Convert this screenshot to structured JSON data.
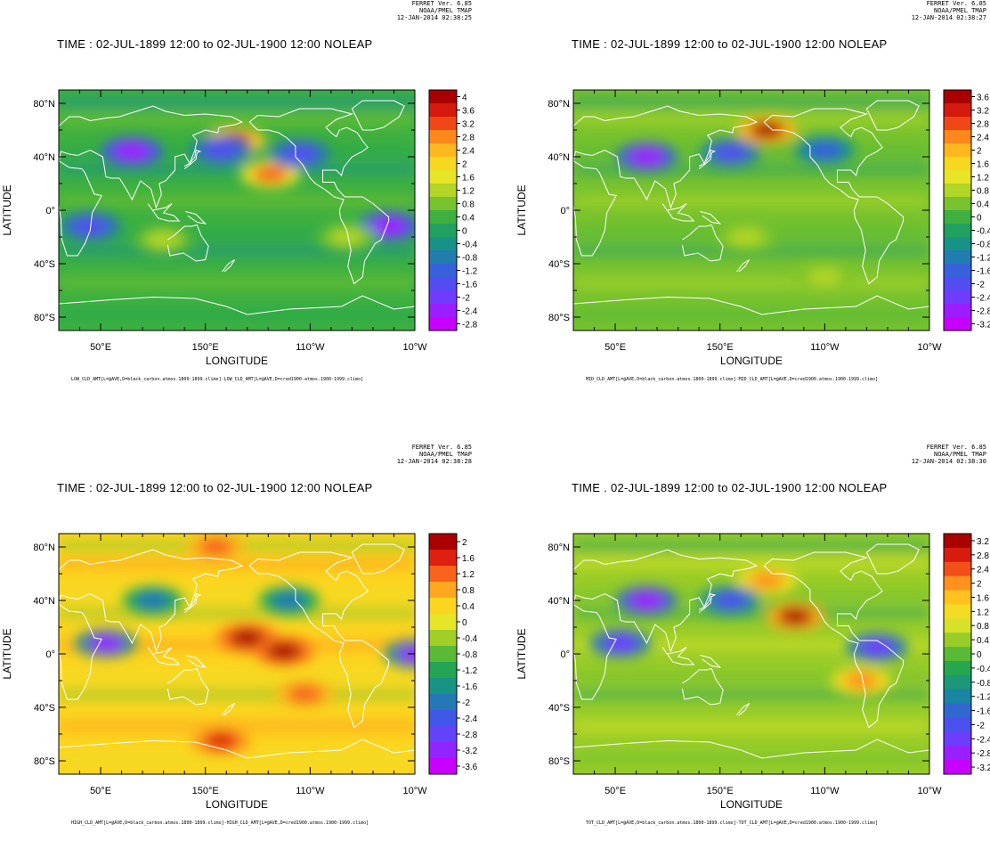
{
  "chart_data": [
    {
      "type": "heatmap",
      "header": [
        "FERRET Ver. 6.85",
        "NOAA/PMEL TMAP",
        "12-JAN-2014 02:38:25"
      ],
      "title": "TIME : 02-JUL-1899 12:00 to 02-JUL-1900 12:00 NOLEAP",
      "xlabel": "LONGITUDE",
      "ylabel": "LATITUDE",
      "x_ticks": [
        "50°E",
        "150°E",
        "110°W",
        "10°W"
      ],
      "y_ticks": [
        "80°N",
        "40°N",
        "0°",
        "40°S",
        "80°S"
      ],
      "colorbar_labels": [
        "4",
        "3.6",
        "3.2",
        "2.8",
        "2.4",
        "2",
        "1.6",
        "1.2",
        "0.8",
        "0.4",
        "0",
        "-0.4",
        "-0.8",
        "-1.2",
        "-1.6",
        "-2",
        "-2.4",
        "-2.8"
      ],
      "footer": "LOW_CLD_AMT[L=@AVE,D=black_carbon.atmos.1800-1899.climo]-LOW_CLD_AMT[L=@AVE,D=cred1900.atmos.1900-1999.climo]",
      "hotspots": [
        {
          "lon": 178,
          "lat": 52,
          "value": 4.0
        },
        {
          "lon": 212,
          "lat": 27,
          "value": 3.0
        },
        {
          "lon": 80,
          "lat": 44,
          "value": -2.4
        },
        {
          "lon": 165,
          "lat": 45,
          "value": -1.6
        },
        {
          "lon": 240,
          "lat": 42,
          "value": -1.6
        },
        {
          "lon": 325,
          "lat": -12,
          "value": -2.4
        },
        {
          "lon": 40,
          "lat": -12,
          "value": -1.6
        },
        {
          "lon": 110,
          "lat": -22,
          "value": 1.2
        },
        {
          "lon": 285,
          "lat": -20,
          "value": 1.2
        }
      ]
    },
    {
      "type": "heatmap",
      "header": [
        "FERRET Ver. 6.85",
        "NOAA/PMEL TMAP",
        "12-JAN-2014 02:38:27"
      ],
      "title": "TIME : 02-JUL-1899 12:00 to 02-JUL-1900 12:00 NOLEAP",
      "xlabel": "LONGITUDE",
      "ylabel": "LATITUDE",
      "x_ticks": [
        "50°E",
        "150°E",
        "110°W",
        "10°W"
      ],
      "y_ticks": [
        "80°N",
        "40°N",
        "0°",
        "40°S",
        "80°S"
      ],
      "colorbar_labels": [
        "3.6",
        "3.2",
        "2.8",
        "2.4",
        "2",
        "1.6",
        "1.2",
        "0.8",
        "0.4",
        "0",
        "-0.4",
        "-0.8",
        "-1.2",
        "-1.6",
        "-2",
        "-2.4",
        "-2.8",
        "-3.2"
      ],
      "footer": "MID_CLD_AMT[L=@AVE,D=black_carbon.atmos.1800-1899.climo]-MID_CLD_AMT[L=@AVE,D=cred1900.atmos.1900-1999.climo]",
      "hotspots": [
        {
          "lon": 195,
          "lat": 60,
          "value": 3.6
        },
        {
          "lon": 80,
          "lat": 40,
          "value": -2.8
        },
        {
          "lon": 160,
          "lat": 43,
          "value": -2.0
        },
        {
          "lon": 250,
          "lat": 45,
          "value": -1.6
        },
        {
          "lon": 175,
          "lat": -20,
          "value": 0.8
        },
        {
          "lon": 250,
          "lat": -50,
          "value": 0.8
        }
      ]
    },
    {
      "type": "heatmap",
      "header": [
        "FERRET Ver. 6.85",
        "NOAA/PMEL TMAP",
        "12-JAN-2014 02:38:28"
      ],
      "title": "TIME : 02-JUL-1899 12:00 to 02-JUL-1900 12:00 NOLEAP",
      "xlabel": "LONGITUDE",
      "ylabel": "LATITUDE",
      "x_ticks": [
        "50°E",
        "150°E",
        "110°W",
        "10°W"
      ],
      "y_ticks": [
        "80°N",
        "40°N",
        "0°",
        "40°S",
        "80°S"
      ],
      "colorbar_labels": [
        "2",
        "1.6",
        "1.2",
        "0.8",
        "0.4",
        "0",
        "-0.4",
        "-0.8",
        "-1.2",
        "-1.6",
        "-2",
        "-2.4",
        "-2.8",
        "-3.2",
        "-3.6"
      ],
      "footer": "HIGH_CLD_AMT[L=@AVE,D=black_carbon.atmos.1800-1899.climo]-HIGH_CLD_AMT[L=@AVE,D=cred1900.atmos.1900-1999.climo]",
      "hotspots": [
        {
          "lon": 190,
          "lat": 12,
          "value": 2.0
        },
        {
          "lon": 225,
          "lat": 2,
          "value": 2.0
        },
        {
          "lon": 165,
          "lat": -65,
          "value": 1.6
        },
        {
          "lon": 160,
          "lat": 80,
          "value": 1.2
        },
        {
          "lon": 55,
          "lat": 8,
          "value": -3.2
        },
        {
          "lon": 350,
          "lat": 0,
          "value": -3.2
        },
        {
          "lon": 100,
          "lat": 40,
          "value": -2.0
        },
        {
          "lon": 230,
          "lat": 40,
          "value": -2.0
        },
        {
          "lon": 245,
          "lat": -30,
          "value": 1.2
        }
      ]
    },
    {
      "type": "heatmap",
      "header": [
        "FERRET Ver. 6.85",
        "NOAA/PMEL TMAP",
        "12-JAN-2014 02:38:30"
      ],
      "title": "TIME . 02-JUL-1899 12:00 to 02-JUL-1900 12:00 NOLEAP",
      "xlabel": "LONGITUDE",
      "ylabel": "LATITUDE",
      "x_ticks": [
        "50°E",
        "150°E",
        "110°W",
        "10°W"
      ],
      "y_ticks": [
        "80°N",
        "40°N",
        "0°",
        "40°S",
        "80°S"
      ],
      "colorbar_labels": [
        "3.2",
        "2.8",
        "2.4",
        "2",
        "1.6",
        "1.2",
        "0.8",
        "0.4",
        "0",
        "-0.4",
        "-0.8",
        "-1.2",
        "-1.6",
        "-2",
        "-2.4",
        "-2.8",
        "-3.2"
      ],
      "footer": "TOT_CLD_AMT[L=@AVE,D=black_carbon.atmos.1800-1899.climo]-TOT_CLD_AMT[L=@AVE,D=cred1900.atmos.1900-1999.climo]",
      "hotspots": [
        {
          "lon": 222,
          "lat": 28,
          "value": 3.2
        },
        {
          "lon": 195,
          "lat": 55,
          "value": 2.0
        },
        {
          "lon": 80,
          "lat": 40,
          "value": -2.8
        },
        {
          "lon": 160,
          "lat": 40,
          "value": -2.0
        },
        {
          "lon": 55,
          "lat": 8,
          "value": -2.4
        },
        {
          "lon": 300,
          "lat": 5,
          "value": -2.4
        },
        {
          "lon": 285,
          "lat": -20,
          "value": 2.0
        }
      ]
    }
  ]
}
